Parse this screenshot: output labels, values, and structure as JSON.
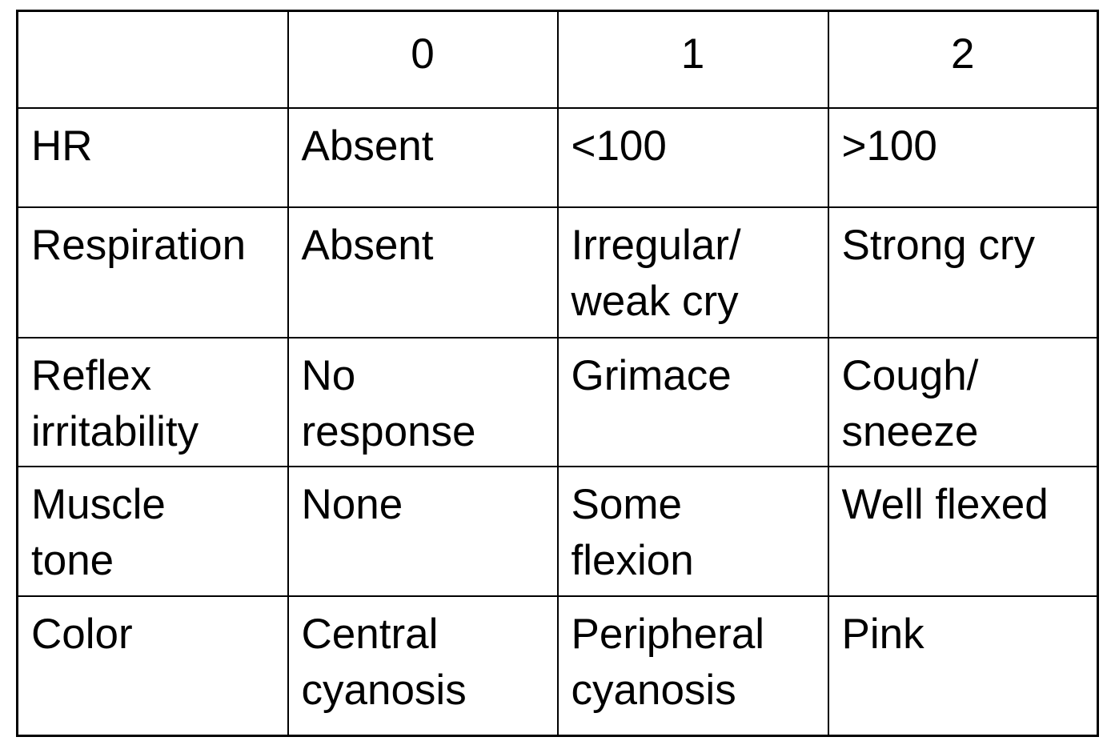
{
  "table": {
    "header": [
      "0",
      "1",
      "2"
    ],
    "rows": [
      {
        "label": [
          "HR"
        ],
        "cells": [
          [
            "Absent"
          ],
          [
            "<100"
          ],
          [
            ">100"
          ]
        ]
      },
      {
        "label": [
          "Respiration"
        ],
        "cells": [
          [
            "Absent"
          ],
          [
            "Irregular/",
            "weak cry"
          ],
          [
            "Strong cry"
          ]
        ]
      },
      {
        "label": [
          "Reflex",
          "irritability"
        ],
        "cells": [
          [
            "No",
            "response"
          ],
          [
            "Grimace"
          ],
          [
            "Cough/",
            "sneeze"
          ]
        ]
      },
      {
        "label": [
          "Muscle",
          "tone"
        ],
        "cells": [
          [
            "None"
          ],
          [
            "Some",
            "flexion"
          ],
          [
            "Well flexed"
          ]
        ]
      },
      {
        "label": [
          "Color"
        ],
        "cells": [
          [
            "Central",
            "cyanosis"
          ],
          [
            "Peripheral",
            "cyanosis"
          ],
          [
            "Pink"
          ]
        ]
      }
    ]
  }
}
